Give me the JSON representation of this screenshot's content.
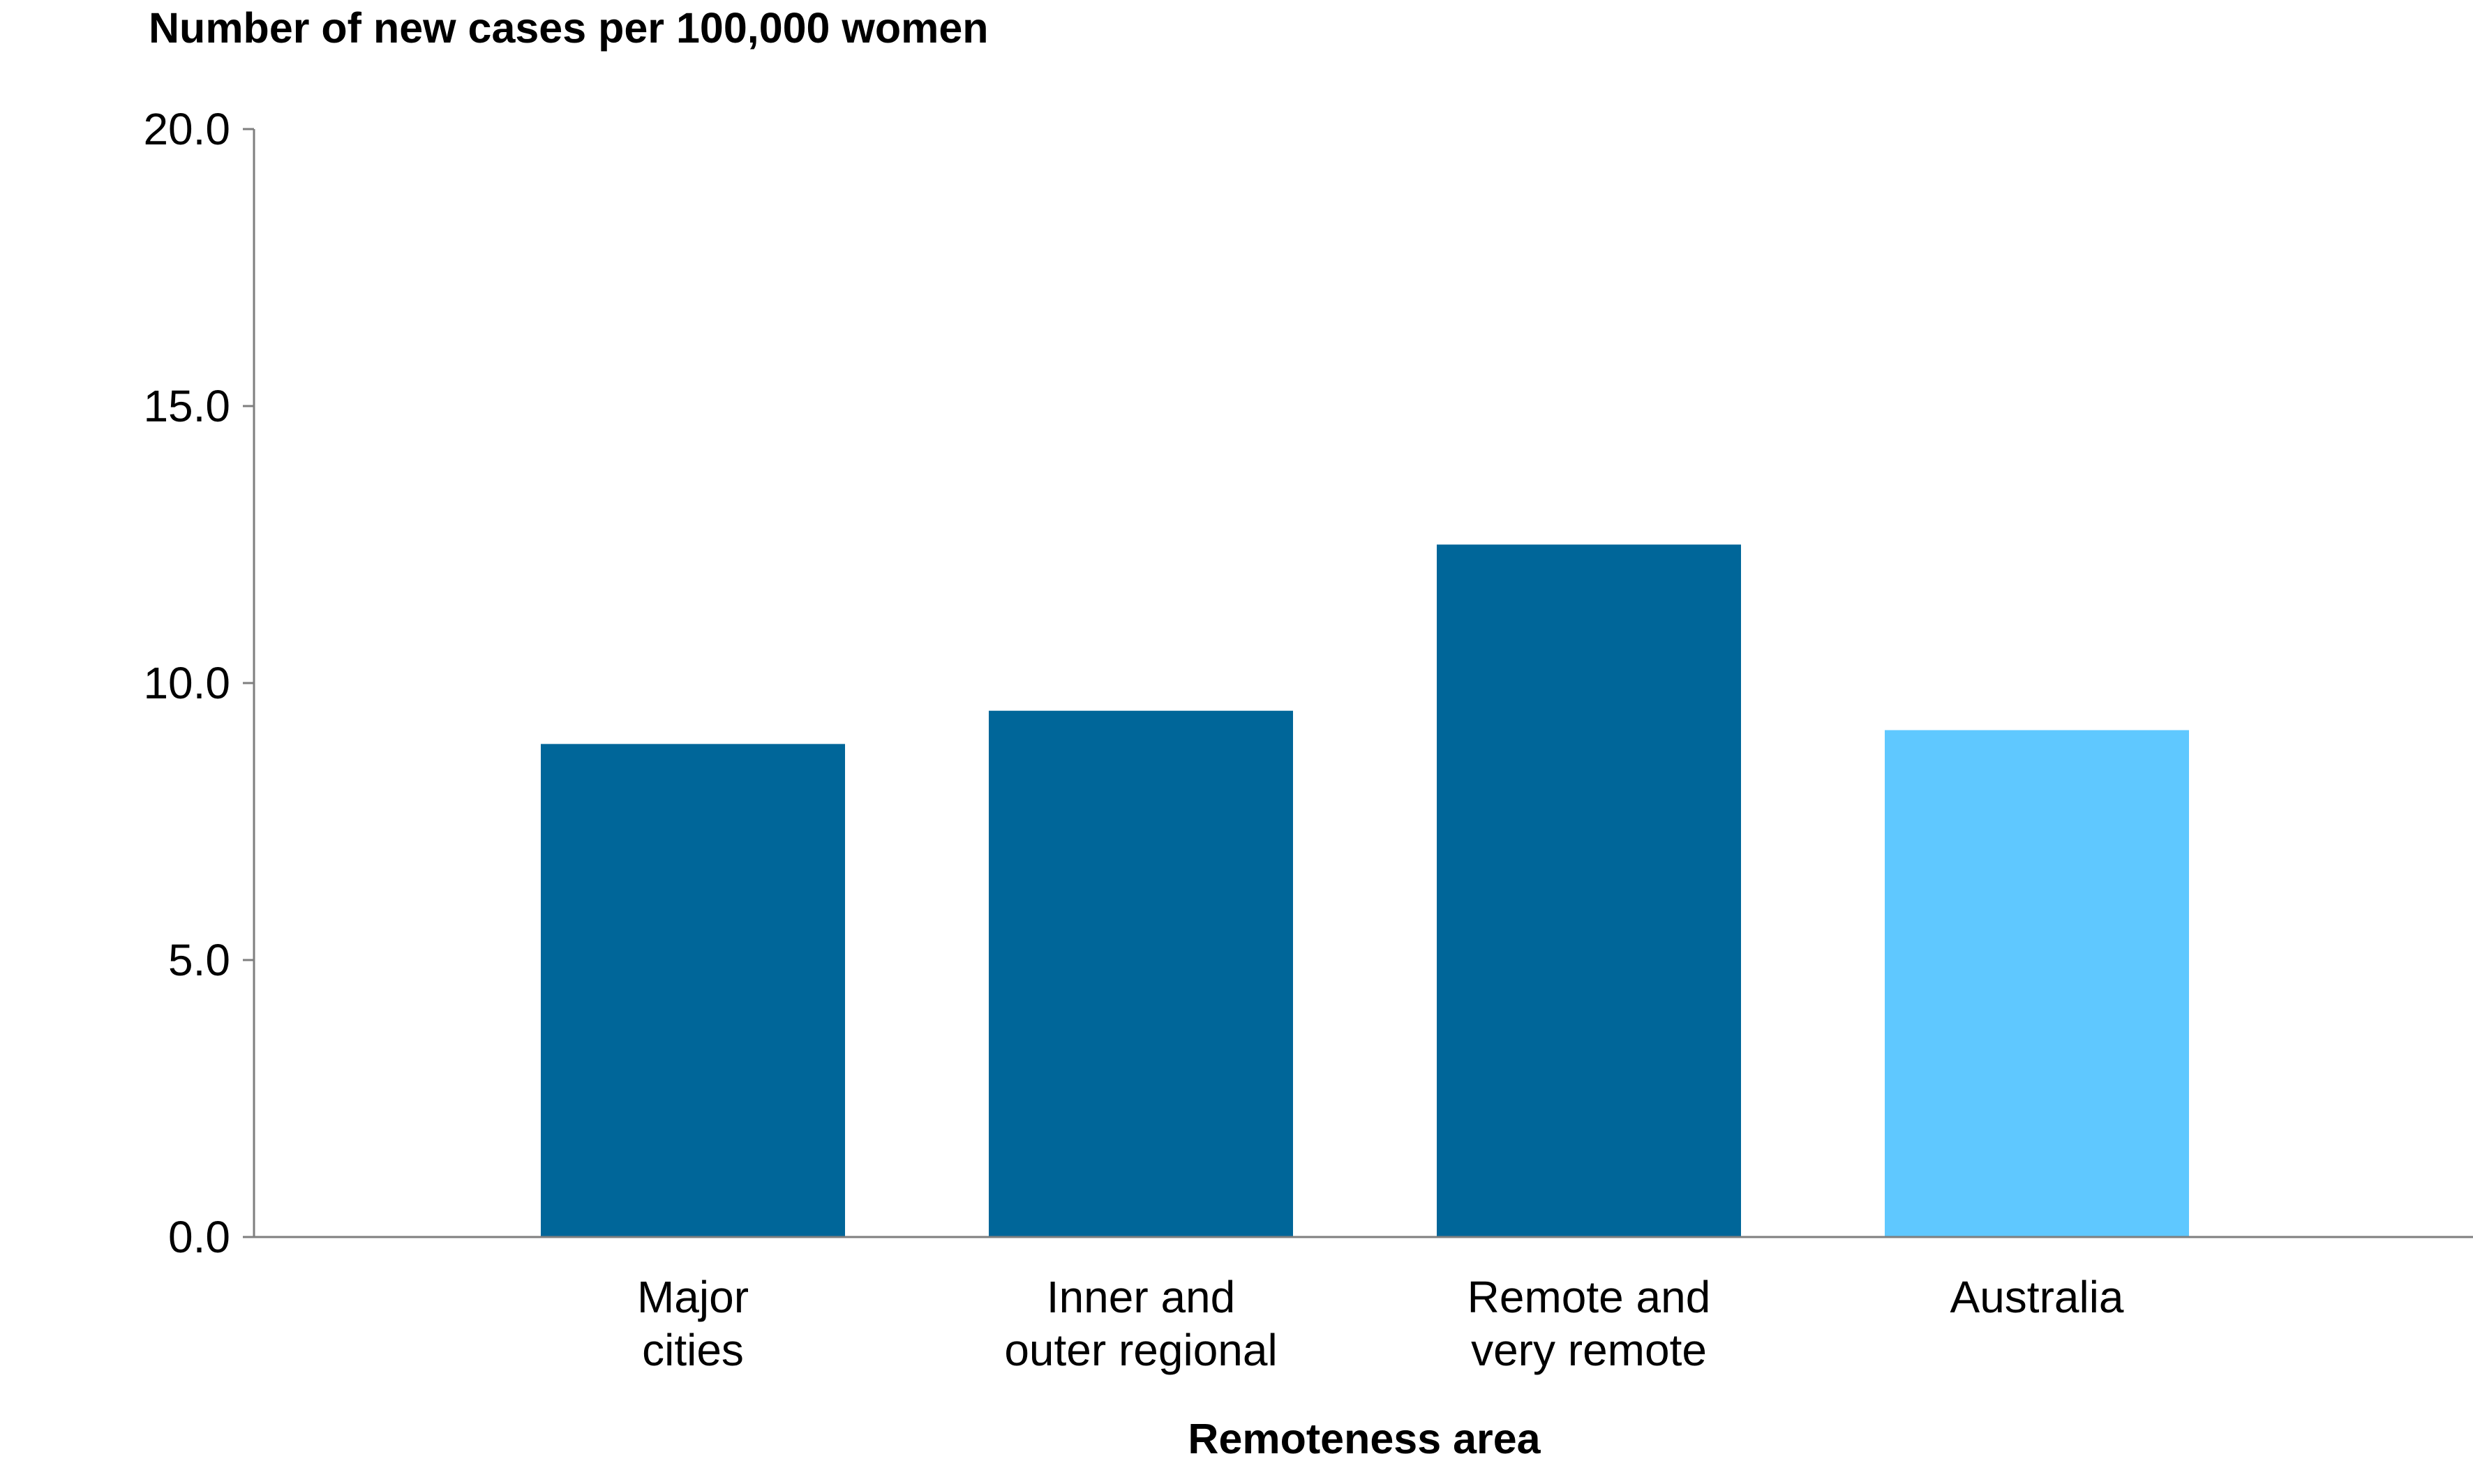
{
  "chart_data": {
    "type": "bar",
    "ylabel": "Number of new cases per 100,000 women",
    "xlabel": "Remoteness area",
    "categories": [
      [
        "Major",
        "cities"
      ],
      [
        "Inner and",
        "outer regional"
      ],
      [
        "Remote and",
        "very remote"
      ],
      [
        "Australia"
      ]
    ],
    "values": [
      8.9,
      9.5,
      12.5,
      9.15
    ],
    "bar_colors": [
      "#006699",
      "#006699",
      "#006699",
      "#5FC8FF"
    ],
    "ylim": [
      0,
      20
    ],
    "yticks": [
      0,
      5,
      10,
      15,
      20
    ],
    "ytick_labels": [
      "0.0",
      "5.0",
      "10.0",
      "15.0",
      "20.0"
    ],
    "grid": false,
    "legend": "none"
  },
  "colors": {
    "bar_dark": "#006699",
    "bar_light": "#5FC8FF",
    "axis": "#7f7f7f"
  }
}
